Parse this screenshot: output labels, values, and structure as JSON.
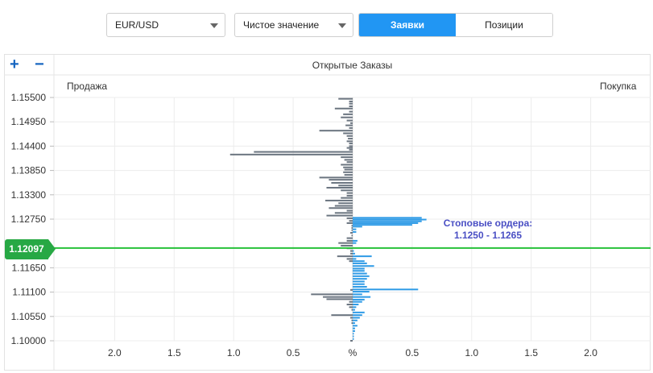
{
  "controls": {
    "symbol": "EUR/USD",
    "mode": "Чистое значение",
    "tabs": [
      {
        "label": "Заявки",
        "active": true
      },
      {
        "label": "Позиции",
        "active": false
      }
    ]
  },
  "zoom": {
    "plus": "+",
    "minus": "−"
  },
  "panel": {
    "title": "Открытые Заказы",
    "sell_label": "Продажа",
    "buy_label": "Покупка"
  },
  "current_price": "1.12097",
  "annotation": {
    "line1": "Стоповые ордера:",
    "line2": "1.1250 - 1.1265"
  },
  "colors": {
    "sell": "#6b7580",
    "buy": "#2f9be6",
    "price_line": "#27c13a",
    "accent": "#2196f3"
  },
  "chart_data": {
    "type": "bar",
    "orientation": "horizontal",
    "y_ticks": [
      "1.15500",
      "1.14950",
      "1.14400",
      "1.13850",
      "1.13300",
      "1.12750",
      "1.11650",
      "1.11100",
      "1.10550",
      "1.10000"
    ],
    "ylim": [
      1.1,
      1.155
    ],
    "x_ticks_left": [
      "2.0",
      "1.5",
      "1.0",
      "0.5"
    ],
    "x_center_label": "%",
    "x_ticks_right": [
      "0.5",
      "1.0",
      "1.5",
      "2.0"
    ],
    "xlim": [
      -2.5,
      2.5
    ],
    "sell": [
      [
        1.1547,
        0.12
      ],
      [
        1.1541,
        0.03
      ],
      [
        1.1536,
        0.03
      ],
      [
        1.153,
        0.03
      ],
      [
        1.1525,
        0.15
      ],
      [
        1.1518,
        0.03
      ],
      [
        1.1512,
        0.08
      ],
      [
        1.1505,
        0.1
      ],
      [
        1.1498,
        0.05
      ],
      [
        1.1492,
        0.02
      ],
      [
        1.1487,
        0.06
      ],
      [
        1.1481,
        0.03
      ],
      [
        1.1475,
        0.28
      ],
      [
        1.1469,
        0.08
      ],
      [
        1.1463,
        0.05
      ],
      [
        1.1457,
        0.04
      ],
      [
        1.1451,
        0.05
      ],
      [
        1.1446,
        0.03
      ],
      [
        1.144,
        0.03
      ],
      [
        1.1436,
        0.05
      ],
      [
        1.1432,
        0.03
      ],
      [
        1.1427,
        0.83
      ],
      [
        1.1421,
        1.03
      ],
      [
        1.1415,
        0.1
      ],
      [
        1.1409,
        0.07
      ],
      [
        1.1404,
        0.05
      ],
      [
        1.1398,
        0.1
      ],
      [
        1.1392,
        0.08
      ],
      [
        1.1387,
        0.07
      ],
      [
        1.1381,
        0.08
      ],
      [
        1.1375,
        0.07
      ],
      [
        1.1369,
        0.28
      ],
      [
        1.1364,
        0.2
      ],
      [
        1.1357,
        0.18
      ],
      [
        1.1351,
        0.12
      ],
      [
        1.1346,
        0.22
      ],
      [
        1.134,
        0.1
      ],
      [
        1.1334,
        0.05
      ],
      [
        1.1328,
        0.05
      ],
      [
        1.1323,
        0.1
      ],
      [
        1.1317,
        0.23
      ],
      [
        1.1311,
        0.12
      ],
      [
        1.1305,
        0.15
      ],
      [
        1.13,
        0.2
      ],
      [
        1.1294,
        0.05
      ],
      [
        1.1289,
        0.15
      ],
      [
        1.1283,
        0.22
      ],
      [
        1.1277,
        0.05
      ],
      [
        1.1271,
        0.03
      ],
      [
        1.1266,
        0.05
      ],
      [
        1.126,
        0.01
      ],
      [
        1.1255,
        0.01
      ],
      [
        1.125,
        0.01
      ],
      [
        1.1244,
        0.02
      ],
      [
        1.1238,
        0.01
      ],
      [
        1.1232,
        0.05
      ],
      [
        1.1226,
        0.05
      ],
      [
        1.1221,
        0.12
      ],
      [
        1.1215,
        0.1
      ],
      [
        1.1209,
        0.05
      ],
      [
        1.1203,
        0.02
      ],
      [
        1.1197,
        0.02
      ],
      [
        1.1191,
        0.13
      ],
      [
        1.1185,
        0.05
      ],
      [
        1.118,
        0.03
      ],
      [
        1.1115,
        0.02
      ],
      [
        1.1105,
        0.35
      ],
      [
        1.1099,
        0.25
      ],
      [
        1.1094,
        0.22
      ],
      [
        1.1088,
        0.03
      ],
      [
        1.1082,
        0.05
      ],
      [
        1.1076,
        0.03
      ],
      [
        1.107,
        0.01
      ],
      [
        1.1058,
        0.18
      ],
      [
        1.1052,
        0.02
      ],
      [
        1.1046,
        0.01
      ],
      [
        1.104,
        0.01
      ],
      [
        1.1,
        0.02
      ]
    ],
    "buy": [
      [
        1.1278,
        0.58
      ],
      [
        1.1274,
        0.62
      ],
      [
        1.127,
        0.58
      ],
      [
        1.1266,
        0.55
      ],
      [
        1.1262,
        0.5
      ],
      [
        1.1258,
        0.08
      ],
      [
        1.1252,
        0.03
      ],
      [
        1.1246,
        0.03
      ],
      [
        1.1226,
        0.04
      ],
      [
        1.1221,
        0.03
      ],
      [
        1.1203,
        0.01
      ],
      [
        1.1197,
        0.02
      ],
      [
        1.1191,
        0.16
      ],
      [
        1.1185,
        0.03
      ],
      [
        1.118,
        0.1
      ],
      [
        1.1175,
        0.12
      ],
      [
        1.1169,
        0.18
      ],
      [
        1.1163,
        0.1
      ],
      [
        1.1158,
        0.1
      ],
      [
        1.1152,
        0.12
      ],
      [
        1.1146,
        0.14
      ],
      [
        1.114,
        0.12
      ],
      [
        1.1134,
        0.1
      ],
      [
        1.1128,
        0.1
      ],
      [
        1.1122,
        0.12
      ],
      [
        1.1116,
        0.55
      ],
      [
        1.1111,
        0.14
      ],
      [
        1.1105,
        0.08
      ],
      [
        1.1099,
        0.15
      ],
      [
        1.1093,
        0.1
      ],
      [
        1.1088,
        0.08
      ],
      [
        1.1082,
        0.05
      ],
      [
        1.1076,
        0.03
      ],
      [
        1.107,
        0.02
      ],
      [
        1.1064,
        0.1
      ],
      [
        1.1058,
        0.08
      ],
      [
        1.1052,
        0.06
      ],
      [
        1.1046,
        0.04
      ],
      [
        1.104,
        0.02
      ],
      [
        1.1034,
        0.04
      ],
      [
        1.1028,
        0.02
      ],
      [
        1.1022,
        0.02
      ],
      [
        1.1016,
        0.01
      ],
      [
        1.101,
        0.01
      ],
      [
        1.1004,
        0.01
      ]
    ]
  }
}
